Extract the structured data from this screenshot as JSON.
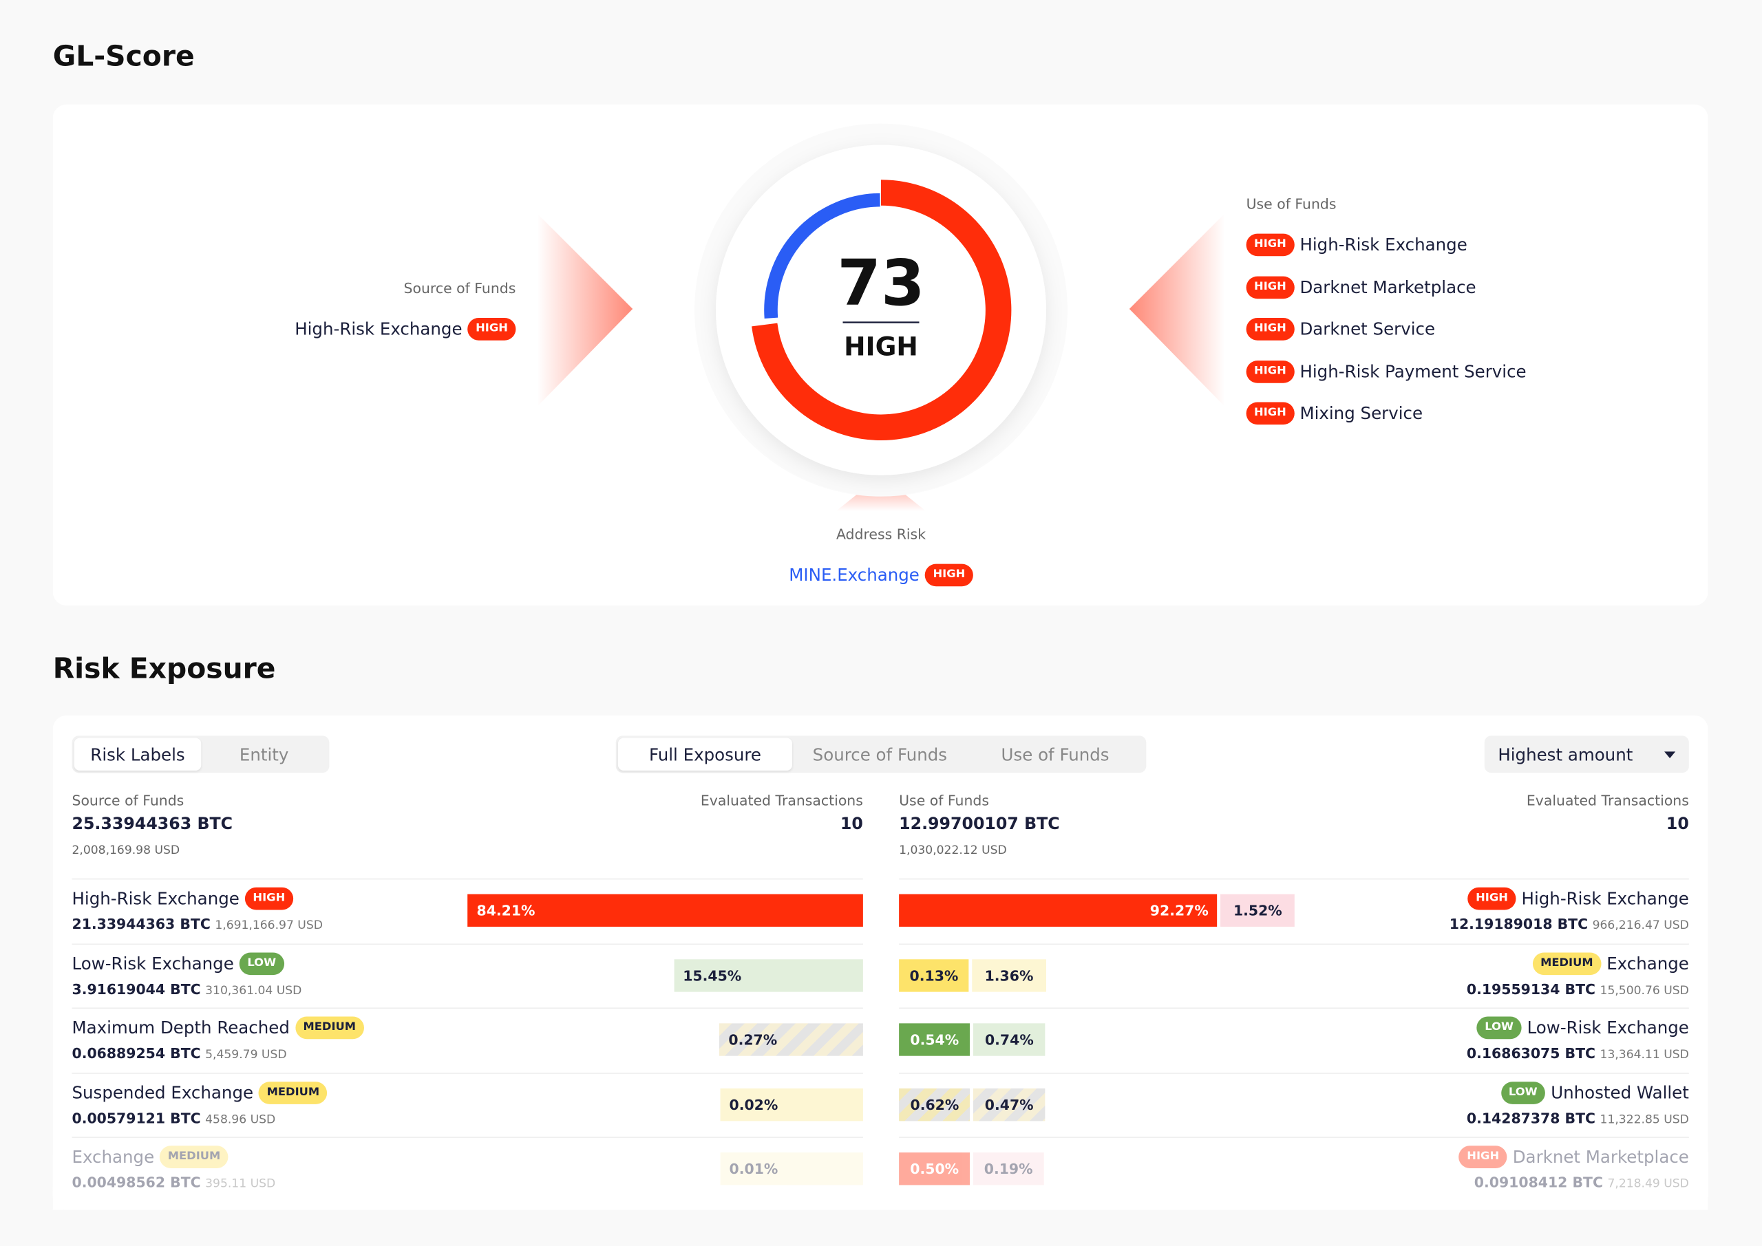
{
  "header": {
    "title": "GL-Score"
  },
  "risk_colors": {
    "HIGH": "#ff2d0a",
    "MEDIUM": "#fde36a",
    "LOW": "#6aa84f"
  },
  "score": {
    "value": 73,
    "label": "HIGH"
  },
  "source_of_funds": {
    "label": "Source of Funds",
    "items": [
      {
        "name": "High-Risk Exchange",
        "risk": "HIGH"
      }
    ]
  },
  "use_of_funds": {
    "label": "Use of Funds",
    "items": [
      {
        "name": "High-Risk Exchange",
        "risk": "HIGH"
      },
      {
        "name": "Darknet Marketplace",
        "risk": "HIGH"
      },
      {
        "name": "Darknet Service",
        "risk": "HIGH"
      },
      {
        "name": "High-Risk Payment Service",
        "risk": "HIGH"
      },
      {
        "name": "Mixing Service",
        "risk": "HIGH"
      }
    ]
  },
  "address_risk": {
    "label": "Address Risk",
    "entity": "MINE.Exchange",
    "risk": "HIGH"
  },
  "exposure": {
    "title": "Risk Exposure",
    "view_tabs": [
      "Risk Labels",
      "Entity"
    ],
    "direction_tabs": [
      "Full Exposure",
      "Source of Funds",
      "Use of Funds"
    ],
    "sort": "Highest amount",
    "left": {
      "label": "Source of Funds",
      "amount": "25.33944363 BTC",
      "usd": "2,008,169.98 USD",
      "tx_label": "Evaluated Transactions",
      "tx": "10",
      "rows": [
        {
          "name": "High-Risk Exchange",
          "risk": "HIGH",
          "btc": "21.33944363 BTC",
          "usd": "1,691,166.97 USD",
          "bars": [
            {
              "value": 84.21,
              "label": "84.21%",
              "color": "#ff2d0a",
              "striped": false
            }
          ]
        },
        {
          "name": "Low-Risk Exchange",
          "risk": "LOW",
          "btc": "3.91619044 BTC",
          "usd": "310,361.04 USD",
          "bars": [
            {
              "value": 15.45,
              "label": "15.45%",
              "color": "#e2efdc",
              "striped": false
            }
          ]
        },
        {
          "name": "Maximum Depth Reached",
          "risk": "MEDIUM",
          "btc": "0.06889254 BTC",
          "usd": "5,459.79 USD",
          "bars": [
            {
              "value": 0.27,
              "label": "0.27%",
              "color": "#f6efd6",
              "striped": true
            }
          ]
        },
        {
          "name": "Suspended Exchange",
          "risk": "MEDIUM",
          "btc": "0.00579121 BTC",
          "usd": "458.96 USD",
          "bars": [
            {
              "value": 0.02,
              "label": "0.02%",
              "color": "#fdf6d3",
              "striped": false
            }
          ]
        },
        {
          "name": "Exchange",
          "risk": "MEDIUM",
          "btc": "0.00498562 BTC",
          "usd": "395.11 USD",
          "bars": [
            {
              "value": 0.01,
              "label": "0.01%",
              "color": "#fdf6d3",
              "striped": false
            }
          ]
        }
      ]
    },
    "right": {
      "label": "Use of Funds",
      "amount": "12.99700107 BTC",
      "usd": "1,030,022.12 USD",
      "tx_label": "Evaluated Transactions",
      "tx": "10",
      "rows": [
        {
          "name": "High-Risk Exchange",
          "risk": "HIGH",
          "btc": "12.19189018 BTC",
          "usd": "966,216.47 USD",
          "bars": [
            {
              "value": 92.27,
              "label": "92.27%",
              "color": "#ff2d0a",
              "striped": false
            },
            {
              "value": 1.52,
              "label": "1.52%",
              "color": "#fcdde3",
              "striped": false
            }
          ]
        },
        {
          "name": "Exchange",
          "risk": "MEDIUM",
          "btc": "0.19559134 BTC",
          "usd": "15,500.76 USD",
          "bars": [
            {
              "value": 0.13,
              "label": "0.13%",
              "color": "#fde36a",
              "striped": false
            },
            {
              "value": 1.36,
              "label": "1.36%",
              "color": "#fdf6d3",
              "striped": false
            }
          ]
        },
        {
          "name": "Low-Risk Exchange",
          "risk": "LOW",
          "btc": "0.16863075 BTC",
          "usd": "13,364.11 USD",
          "bars": [
            {
              "value": 0.54,
              "label": "0.54%",
              "color": "#6aa84f",
              "striped": false
            },
            {
              "value": 0.74,
              "label": "0.74%",
              "color": "#e2efdc",
              "striped": false
            }
          ]
        },
        {
          "name": "Unhosted Wallet",
          "risk": "LOW",
          "btc": "0.14287378 BTC",
          "usd": "11,322.85 USD",
          "bars": [
            {
              "value": 0.62,
              "label": "0.62%",
              "color": "#f3e9b8",
              "striped": true
            },
            {
              "value": 0.47,
              "label": "0.47%",
              "color": "#f6efd6",
              "striped": true
            }
          ]
        },
        {
          "name": "Darknet Marketplace",
          "risk": "HIGH",
          "btc": "0.09108412 BTC",
          "usd": "7,218.49 USD",
          "bars": [
            {
              "value": 0.5,
              "label": "0.50%",
              "color": "#ff2d0a",
              "striped": false
            },
            {
              "value": 0.19,
              "label": "0.19%",
              "color": "#fcdde3",
              "striped": false
            }
          ]
        }
      ]
    }
  }
}
